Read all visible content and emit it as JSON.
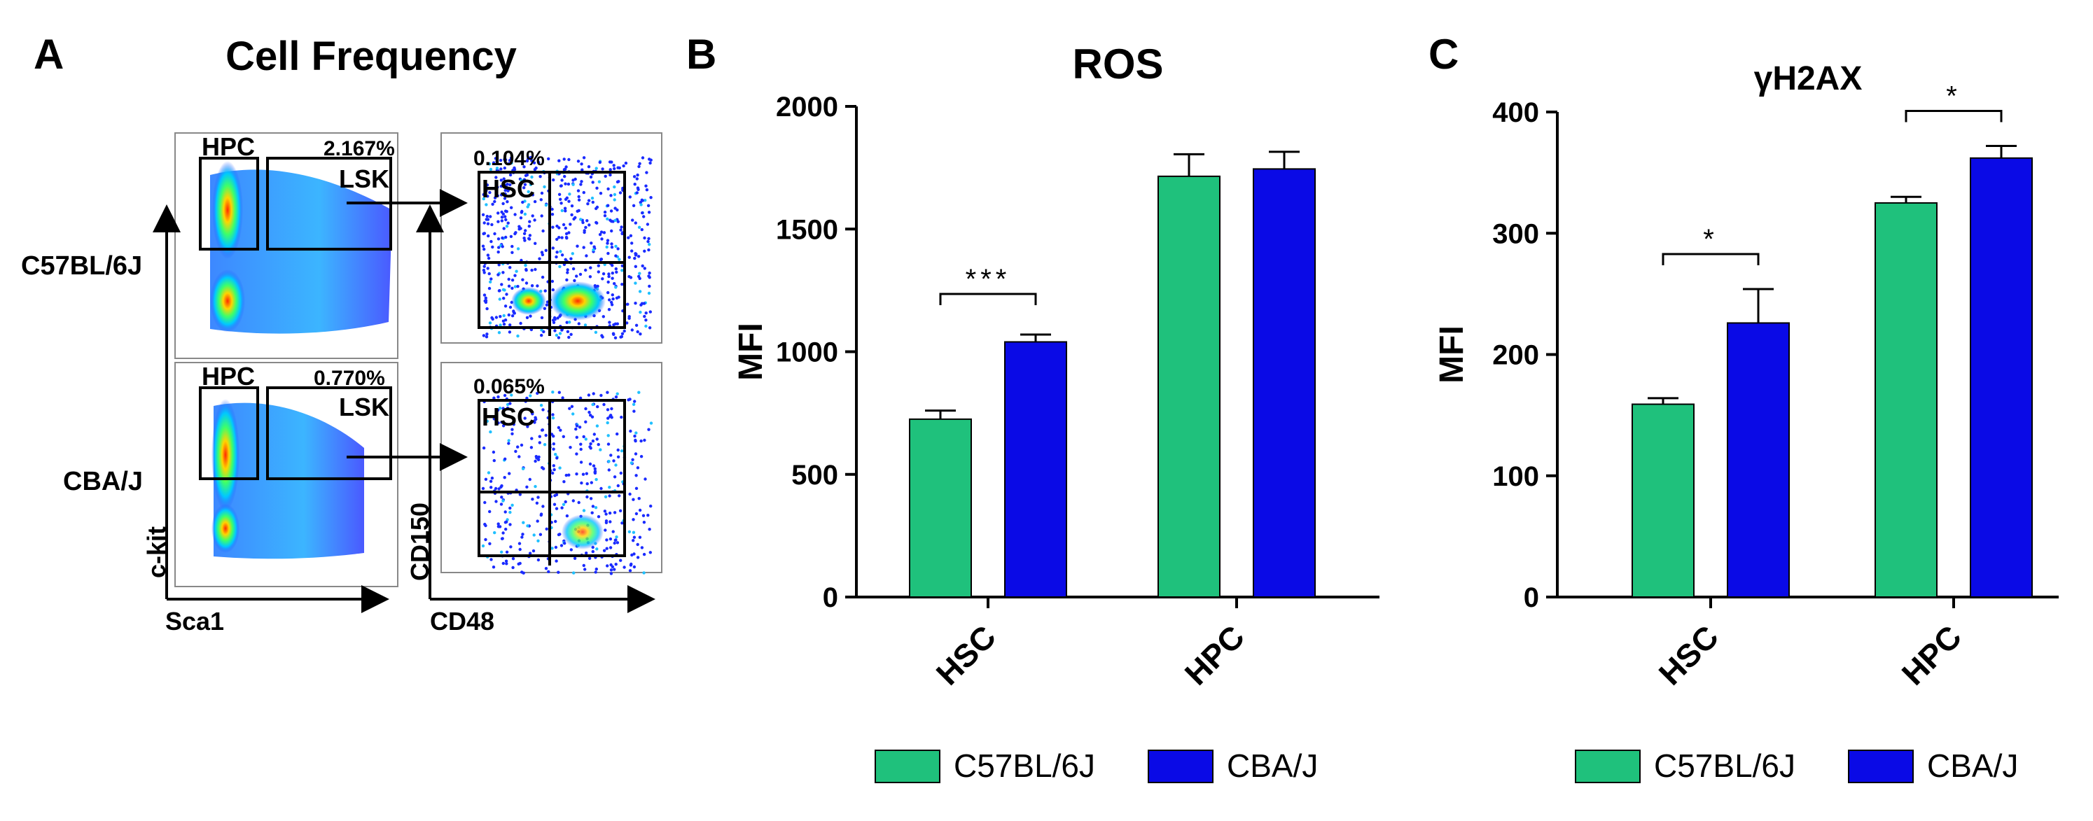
{
  "panel_a": {
    "letter": "A",
    "title": "Cell Frequency",
    "rows": [
      {
        "strain": "C57BL/6J",
        "lsk_percent": "2.167%",
        "hsc_percent": "0.104%"
      },
      {
        "strain": "CBA/J",
        "lsk_percent": "0.770%",
        "hsc_percent": "0.065%"
      }
    ],
    "gate_labels": {
      "hpc": "HPC",
      "lsk": "LSK",
      "hsc": "HSC"
    },
    "axis_labels": {
      "left_y": "c-kit",
      "left_x": "Sca1",
      "right_y": "CD150",
      "right_x": "CD48"
    }
  },
  "chart_data": [
    {
      "panel": "B",
      "type": "bar",
      "title": "ROS",
      "ylabel": "MFI",
      "xlabel": "",
      "ylim": [
        0,
        2000
      ],
      "yticks": [
        0,
        500,
        1000,
        1500,
        2000
      ],
      "categories": [
        "HSC",
        "HPC"
      ],
      "series": [
        {
          "name": "C57BL/6J",
          "color": "#1fc17c",
          "values": [
            725,
            1715
          ],
          "errors": [
            35,
            90
          ]
        },
        {
          "name": "CBA/J",
          "color": "#0a0ae6",
          "values": [
            1040,
            1745
          ],
          "errors": [
            30,
            70
          ]
        }
      ],
      "significance": [
        {
          "category": "HSC",
          "label": "***"
        }
      ],
      "legend": "bottom"
    },
    {
      "panel": "C",
      "type": "bar",
      "title": "γH2AX",
      "ylabel": "MFI",
      "xlabel": "",
      "ylim": [
        0,
        400
      ],
      "yticks": [
        0,
        100,
        200,
        300,
        400
      ],
      "categories": [
        "HSC",
        "HPC"
      ],
      "series": [
        {
          "name": "C57BL/6J",
          "color": "#1fc17c",
          "values": [
            159,
            325
          ],
          "errors": [
            5,
            5
          ]
        },
        {
          "name": "CBA/J",
          "color": "#0a0ae6",
          "values": [
            226,
            362
          ],
          "errors": [
            28,
            10
          ]
        }
      ],
      "significance": [
        {
          "category": "HSC",
          "label": "*"
        },
        {
          "category": "HPC",
          "label": "*"
        }
      ],
      "legend": "bottom"
    }
  ]
}
